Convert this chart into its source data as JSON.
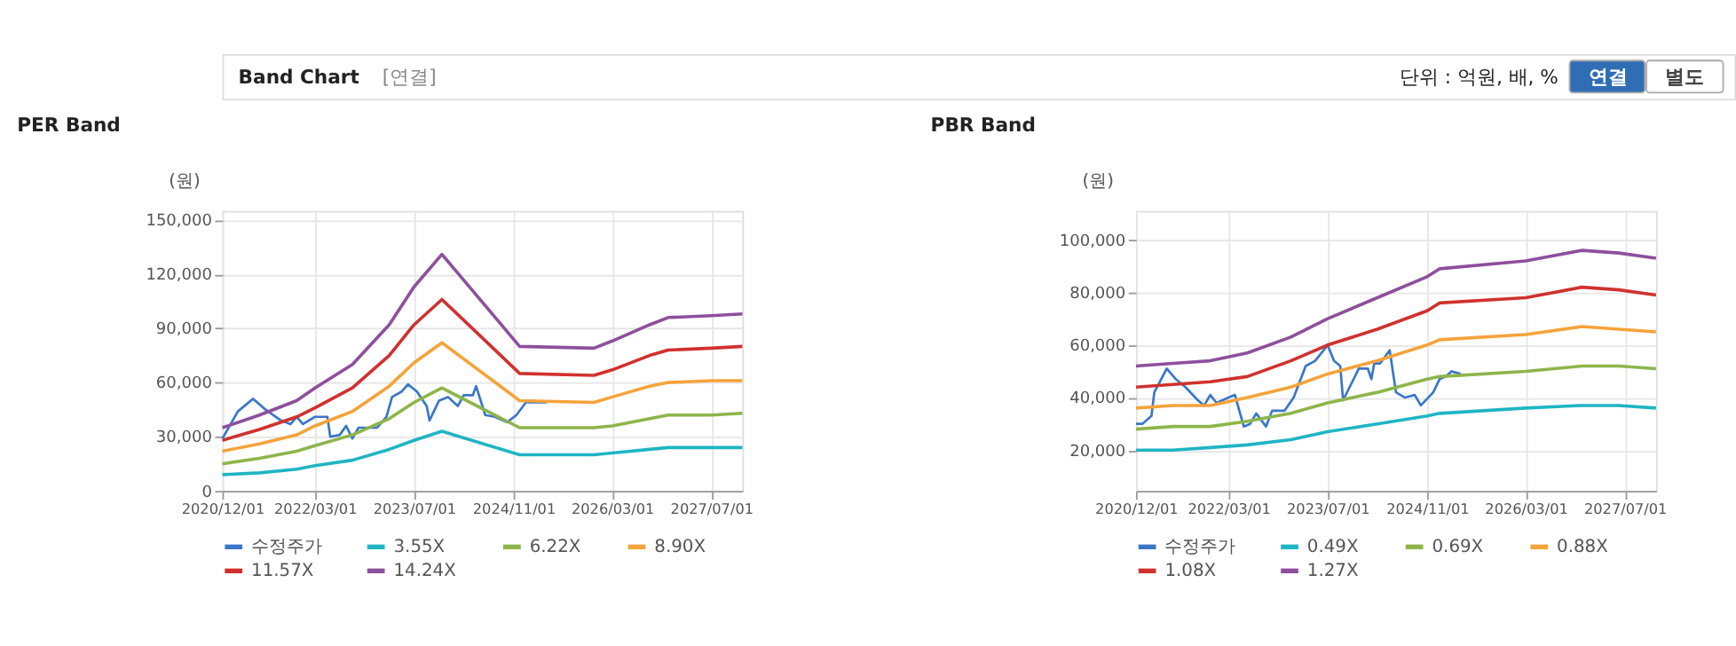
{
  "chart_data": [
    {
      "type": "line",
      "title": "PER Band",
      "ylabel": "(원)",
      "annotations": [
        "Band Chart",
        "[연결]",
        "단위 : 억원, 배, %",
        "연결",
        "별도"
      ],
      "xlim": [
        "2020-12-01",
        "2027-12-01"
      ],
      "xticks": [
        {
          "value": "2020-12-01",
          "label": "2020/12/01"
        },
        {
          "value": "2022-03-01",
          "label": "2022/03/01"
        },
        {
          "value": "2023-07-01",
          "label": "2023/07/01"
        },
        {
          "value": "2024-11-01",
          "label": "2024/11/01"
        },
        {
          "value": "2026-03-01",
          "label": "2026/03/01"
        },
        {
          "value": "2027-07-01",
          "label": "2027/07/01"
        }
      ],
      "ylim": [
        0,
        155000
      ],
      "yticks": [
        0,
        {
          "value": 30000,
          "label": "30,000"
        },
        {
          "value": 60000,
          "label": "60,000"
        },
        {
          "value": 90000,
          "label": "90,000"
        },
        {
          "value": 120000,
          "label": "120,000"
        },
        {
          "value": 150000,
          "label": "150,000"
        }
      ],
      "grid": true,
      "legend": "bottom",
      "x": [
        "2020-12-01",
        "2021-06-01",
        "2021-12-01",
        "2022-03-01",
        "2022-09-01",
        "2023-03-01",
        "2023-07-01",
        "2023-11-15",
        "2024-12-01",
        "2025-12-01",
        "2026-03-01",
        "2026-09-01",
        "2026-12-01",
        "2027-07-01",
        "2027-12-01"
      ],
      "series": [
        {
          "name": "수정주가",
          "color": "#3a77c8",
          "x": [
            "2020-12-01",
            "2021-02-15",
            "2021-05-01",
            "2021-07-01",
            "2021-09-15",
            "2021-11-01",
            "2021-12-01",
            "2022-01-01",
            "2022-03-01",
            "2022-05-01",
            "2022-05-15",
            "2022-07-01",
            "2022-08-01",
            "2022-09-01",
            "2022-10-01",
            "2023-01-01",
            "2023-02-15",
            "2023-03-15",
            "2023-05-01",
            "2023-06-01",
            "2023-07-15",
            "2023-09-01",
            "2023-09-15",
            "2023-11-01",
            "2023-12-15",
            "2024-02-01",
            "2024-03-01",
            "2024-04-15",
            "2024-05-01",
            "2024-06-15",
            "2024-08-01",
            "2024-10-01",
            "2024-11-15",
            "2025-01-01",
            "2025-02-15",
            "2025-04-15"
          ],
          "values": [
            29000,
            44000,
            51000,
            45000,
            39000,
            37000,
            41000,
            37000,
            41000,
            41000,
            30000,
            31000,
            36000,
            29000,
            35000,
            35000,
            41000,
            52000,
            55000,
            59000,
            55000,
            47000,
            39000,
            50000,
            52000,
            47000,
            53000,
            53000,
            58000,
            42000,
            41000,
            38000,
            42000,
            49000,
            49000,
            49000
          ]
        },
        {
          "name": "3.55X",
          "color": "#1fb5c4",
          "values": [
            9000,
            10000,
            12000,
            14000,
            17000,
            23000,
            28000,
            33000,
            20000,
            20000,
            21000,
            23000,
            24000,
            24000,
            24000
          ]
        },
        {
          "name": "6.22X",
          "color": "#8db54a",
          "values": [
            15000,
            18000,
            22000,
            25000,
            31000,
            40000,
            49000,
            57000,
            35000,
            35000,
            36000,
            40000,
            42000,
            42000,
            43000
          ]
        },
        {
          "name": "8.90X",
          "color": "#f5a33a",
          "values": [
            22000,
            26000,
            31000,
            36000,
            44000,
            58000,
            71000,
            82000,
            50000,
            49000,
            52000,
            58000,
            60000,
            61000,
            61000
          ]
        },
        {
          "name": "11.57X",
          "color": "#d0312d",
          "values": [
            28000,
            34000,
            41000,
            46000,
            57000,
            75000,
            92000,
            106000,
            65000,
            64000,
            67000,
            75000,
            78000,
            79000,
            80000
          ]
        },
        {
          "name": "14.24X",
          "color": "#8e4f9c",
          "values": [
            35000,
            42000,
            50000,
            57000,
            70000,
            92000,
            113000,
            131000,
            80000,
            79000,
            83000,
            92000,
            96000,
            97000,
            98000
          ]
        }
      ]
    },
    {
      "type": "line",
      "title": "PBR Band",
      "ylabel": "(원)",
      "xlim": [
        "2020-12-01",
        "2027-12-01"
      ],
      "xticks": [
        {
          "value": "2020-12-01",
          "label": "2020/12/01"
        },
        {
          "value": "2022-03-01",
          "label": "2022/03/01"
        },
        {
          "value": "2023-07-01",
          "label": "2023/07/01"
        },
        {
          "value": "2024-11-01",
          "label": "2024/11/01"
        },
        {
          "value": "2026-03-01",
          "label": "2026/03/01"
        },
        {
          "value": "2027-07-01",
          "label": "2027/07/01"
        }
      ],
      "ylim": [
        4500,
        111000
      ],
      "yticks": [
        {
          "value": 20000,
          "label": "20,000"
        },
        {
          "value": 40000,
          "label": "40,000"
        },
        {
          "value": 60000,
          "label": "60,000"
        },
        {
          "value": 80000,
          "label": "80,000"
        },
        {
          "value": 100000,
          "label": "100,000"
        }
      ],
      "grid": true,
      "legend": "bottom",
      "x": [
        "2020-12-01",
        "2021-06-01",
        "2021-12-01",
        "2022-06-01",
        "2023-01-01",
        "2023-07-01",
        "2024-03-01",
        "2024-11-01",
        "2025-01-01",
        "2026-03-01",
        "2026-12-01",
        "2027-06-01",
        "2027-12-01"
      ],
      "series": [
        {
          "name": "수정주가",
          "color": "#3a77c8",
          "x": [
            "2020-12-01",
            "2021-01-01",
            "2021-02-15",
            "2021-03-01",
            "2021-05-01",
            "2021-06-15",
            "2021-08-01",
            "2021-10-01",
            "2021-11-01",
            "2021-12-01",
            "2022-01-01",
            "2022-03-01",
            "2022-04-01",
            "2022-05-15",
            "2022-06-15",
            "2022-07-15",
            "2022-09-01",
            "2022-10-01",
            "2022-12-01",
            "2023-01-15",
            "2023-03-15",
            "2023-05-01",
            "2023-07-01",
            "2023-08-01",
            "2023-09-01",
            "2023-09-15",
            "2023-12-01",
            "2024-01-15",
            "2024-02-01",
            "2024-02-15",
            "2024-03-15",
            "2024-05-01",
            "2024-06-01",
            "2024-07-15",
            "2024-09-01",
            "2024-10-01",
            "2024-12-01",
            "2025-01-01",
            "2025-02-01",
            "2025-03-01",
            "2025-04-15"
          ],
          "values": [
            30000,
            30000,
            33000,
            42000,
            51000,
            47000,
            44000,
            39000,
            37000,
            41000,
            38000,
            40000,
            41000,
            29000,
            30000,
            34000,
            29000,
            35000,
            35000,
            40000,
            52000,
            54000,
            60000,
            54000,
            52000,
            39000,
            51000,
            51000,
            47000,
            53000,
            53000,
            58000,
            42000,
            40000,
            41000,
            37000,
            42000,
            47000,
            48000,
            50000,
            49000
          ]
        },
        {
          "name": "0.49X",
          "color": "#1fb5c4",
          "values": [
            20000,
            20000,
            21000,
            22000,
            24000,
            27000,
            30000,
            33000,
            34000,
            36000,
            37000,
            37000,
            36000
          ]
        },
        {
          "name": "0.69X",
          "color": "#8db54a",
          "values": [
            28000,
            29000,
            29000,
            31000,
            34000,
            38000,
            42000,
            47000,
            48000,
            50000,
            52000,
            52000,
            51000
          ]
        },
        {
          "name": "0.88X",
          "color": "#f5a33a",
          "values": [
            36000,
            37000,
            37000,
            40000,
            44000,
            49000,
            54000,
            60000,
            62000,
            64000,
            67000,
            66000,
            65000
          ]
        },
        {
          "name": "1.08X",
          "color": "#d0312d",
          "values": [
            44000,
            45000,
            46000,
            48000,
            54000,
            60000,
            66000,
            73000,
            76000,
            78000,
            82000,
            81000,
            79000
          ]
        },
        {
          "name": "1.27X",
          "color": "#8e4f9c",
          "values": [
            52000,
            53000,
            54000,
            57000,
            63000,
            70000,
            78000,
            86000,
            89000,
            92000,
            96000,
            95000,
            93000
          ]
        }
      ]
    }
  ]
}
